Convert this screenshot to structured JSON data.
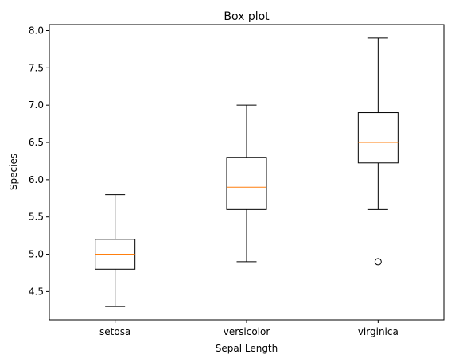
{
  "chart_data": {
    "type": "boxplot",
    "title": "Box plot",
    "xlabel": "Sepal Length",
    "ylabel": "Species",
    "categories": [
      "setosa",
      "versicolor",
      "virginica"
    ],
    "boxes": [
      {
        "category": "setosa",
        "whisker_low": 4.3,
        "q1": 4.8,
        "median": 5.0,
        "q3": 5.2,
        "whisker_high": 5.8,
        "outliers": []
      },
      {
        "category": "versicolor",
        "whisker_low": 4.9,
        "q1": 5.6,
        "median": 5.9,
        "q3": 6.3,
        "whisker_high": 7.0,
        "outliers": []
      },
      {
        "category": "virginica",
        "whisker_low": 5.6,
        "q1": 6.225,
        "median": 6.5,
        "q3": 6.9,
        "whisker_high": 7.9,
        "outliers": [
          4.9
        ]
      }
    ],
    "ylim": [
      4.12,
      8.08
    ],
    "yticks": [
      4.5,
      5.0,
      5.5,
      6.0,
      6.5,
      7.0,
      7.5,
      8.0
    ],
    "grid": false,
    "colors": {
      "box": "#000000",
      "median": "#ff7f0e",
      "outlier": "#000000"
    }
  }
}
